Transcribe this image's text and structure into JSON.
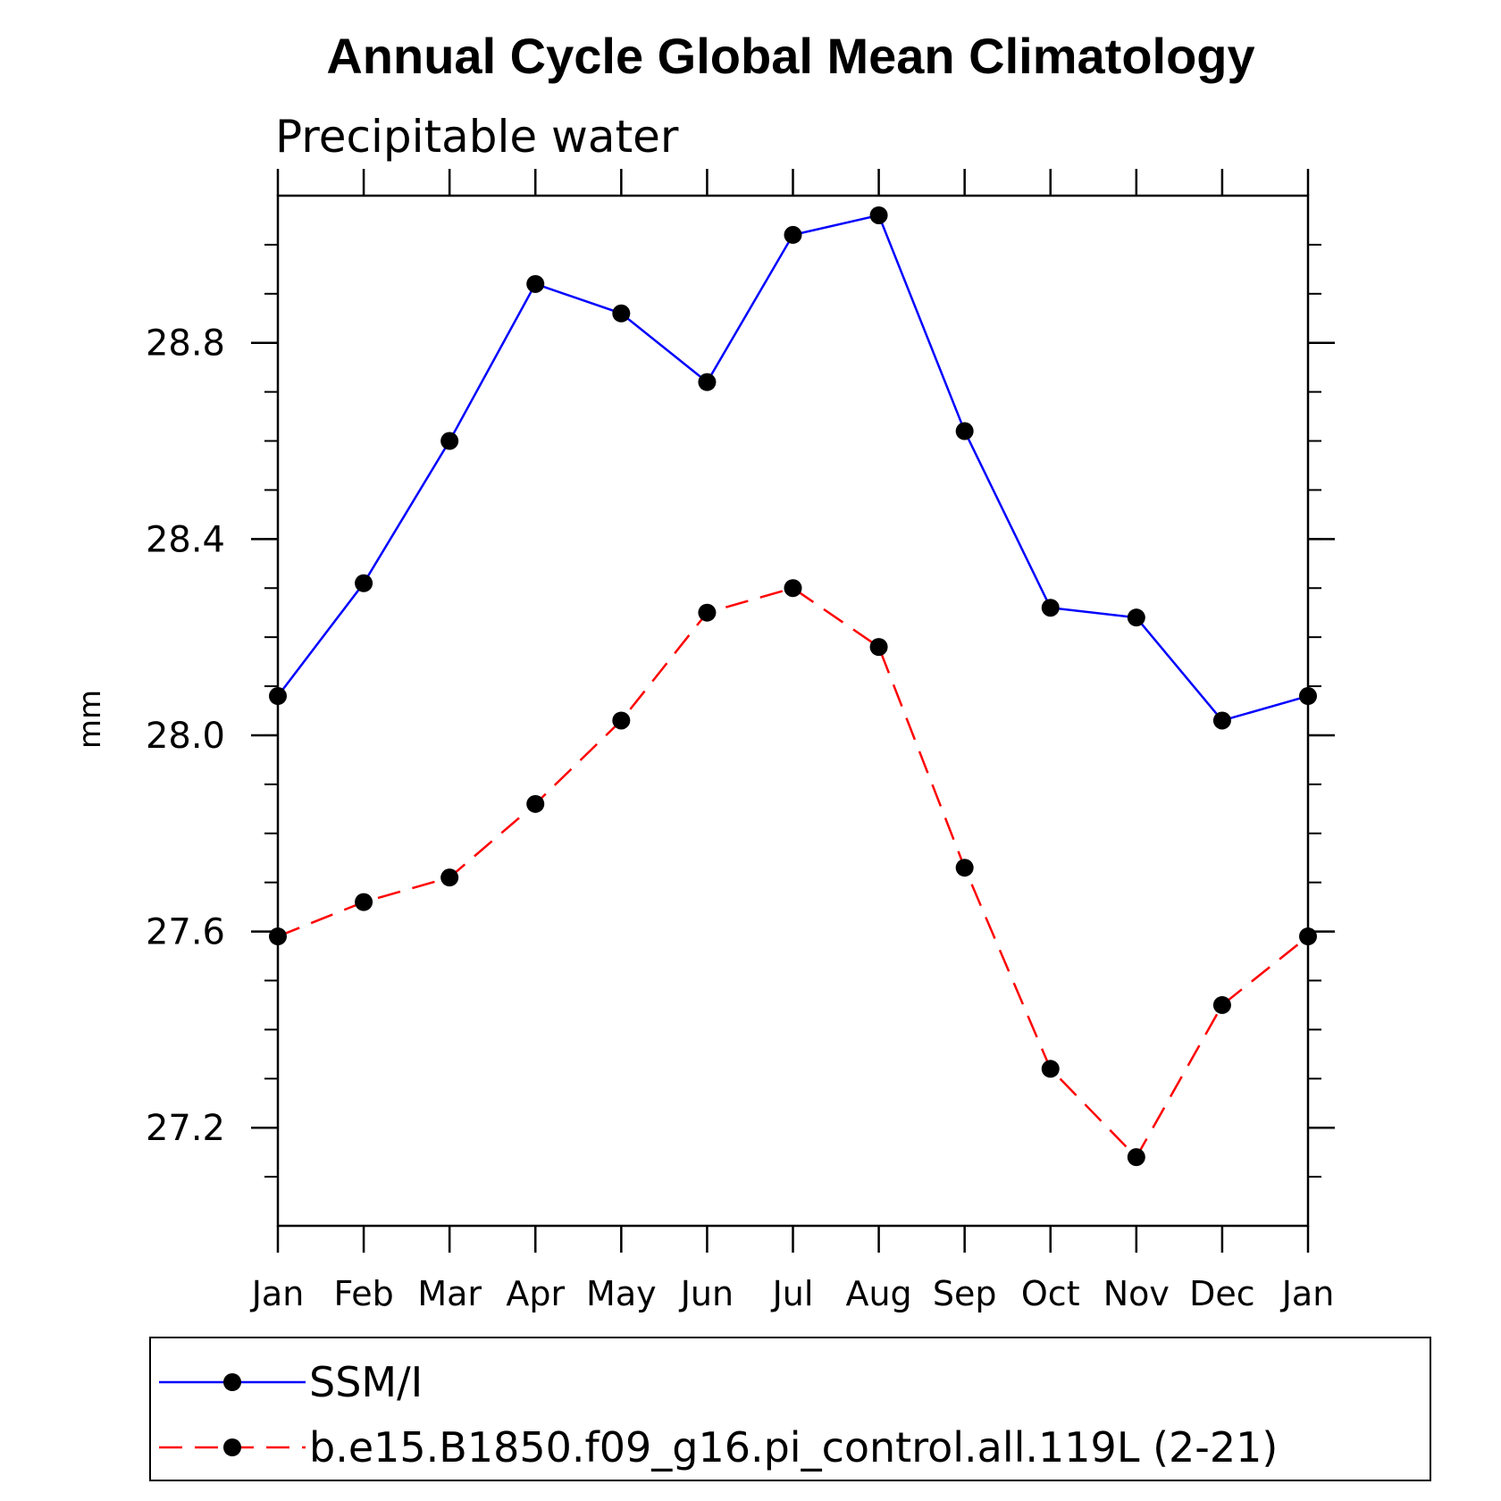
{
  "chart_data": {
    "type": "line",
    "title": "Annual Cycle Global Mean Climatology",
    "subtitle": "Precipitable water",
    "xlabel": "",
    "ylabel": "mm",
    "categories": [
      "Jan",
      "Feb",
      "Mar",
      "Apr",
      "May",
      "Jun",
      "Jul",
      "Aug",
      "Sep",
      "Oct",
      "Nov",
      "Dec",
      "Jan"
    ],
    "ylim": [
      27.0,
      29.1
    ],
    "yticks": [
      "27.2",
      "27.6",
      "28.0",
      "28.4",
      "28.8"
    ],
    "ytick_values": [
      27.2,
      27.6,
      28.0,
      28.4,
      28.8
    ],
    "yminor_step": 0.1,
    "grid": false,
    "legend_position": "bottom",
    "series": [
      {
        "name": "SSM/I",
        "color": "#0000ff",
        "dash": "solid",
        "marker": "filled-circle",
        "values": [
          28.08,
          28.31,
          28.6,
          28.92,
          28.86,
          28.72,
          29.02,
          29.06,
          28.62,
          28.26,
          28.24,
          28.03,
          28.08
        ]
      },
      {
        "name": "b.e15.B1850.f09_g16.pi_control.all.119L (2-21)",
        "color": "#ff0000",
        "dash": "dashed",
        "marker": "filled-circle",
        "values": [
          27.59,
          27.66,
          27.71,
          27.86,
          28.03,
          28.25,
          28.3,
          28.18,
          27.73,
          27.32,
          27.14,
          27.45,
          27.59
        ]
      }
    ]
  }
}
